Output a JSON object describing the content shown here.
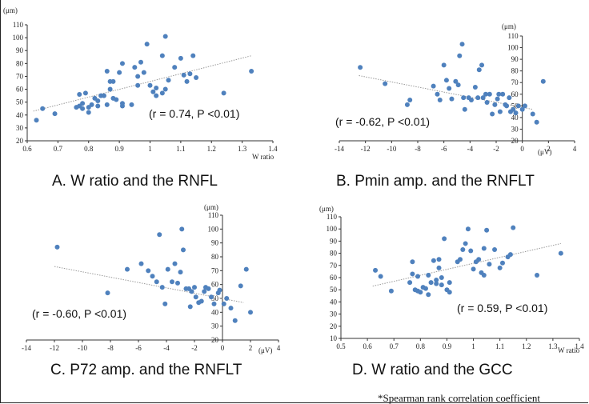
{
  "footnote": "*Spearman rank correlation coefficient",
  "chart_data": [
    {
      "type": "scatter",
      "caption": "A.  W ratio and the RNFL",
      "annotation": "(r = 0.74, P <0.01)",
      "xlabel": "W ratio",
      "ylabel": "(μm)",
      "xlim": [
        0.6,
        1.4
      ],
      "ylim": [
        20,
        110
      ],
      "xticks": [
        0.6,
        0.7,
        0.8,
        0.9,
        1.0,
        1.1,
        1.2,
        1.3,
        1.4
      ],
      "yticks": [
        20,
        30,
        40,
        50,
        60,
        70,
        80,
        90,
        100,
        110
      ],
      "trend": [
        [
          0.62,
          43
        ],
        [
          1.33,
          86
        ]
      ],
      "x": [
        0.63,
        0.65,
        0.69,
        0.76,
        0.77,
        0.77,
        0.78,
        0.78,
        0.79,
        0.8,
        0.8,
        0.81,
        0.82,
        0.83,
        0.83,
        0.84,
        0.85,
        0.86,
        0.86,
        0.87,
        0.87,
        0.88,
        0.88,
        0.89,
        0.9,
        0.91,
        0.91,
        0.91,
        0.94,
        0.95,
        0.96,
        0.96,
        0.97,
        0.98,
        0.99,
        1.0,
        1.01,
        1.02,
        1.02,
        1.04,
        1.04,
        1.05,
        1.05,
        1.06,
        1.08,
        1.1,
        1.11,
        1.12,
        1.13,
        1.14,
        1.15,
        1.24,
        1.33
      ],
      "y": [
        36,
        45,
        41,
        46,
        56,
        47,
        45,
        49,
        57,
        46,
        42,
        48,
        53,
        51,
        47,
        55,
        55,
        74,
        48,
        60,
        66,
        53,
        66,
        52,
        73,
        80,
        47,
        49,
        48,
        77,
        70,
        63,
        81,
        73,
        95,
        63,
        58,
        61,
        55,
        86,
        57,
        101,
        60,
        67,
        77,
        84,
        71,
        66,
        72,
        86,
        69,
        57,
        74
      ]
    },
    {
      "type": "scatter",
      "caption": "B.  Pmin amp. and the RNFLT",
      "annotation": "(r = -0.62, P <0.01)",
      "xlabel": "(μV)",
      "ylabel": "(μm)",
      "xlim": [
        -14,
        4
      ],
      "ylim": [
        20,
        110
      ],
      "xticks": [
        -14,
        -12,
        -10,
        -8,
        -6,
        -4,
        -2,
        0,
        2,
        4
      ],
      "yticks": [
        20,
        30,
        40,
        50,
        60,
        70,
        80,
        90,
        100,
        110
      ],
      "trend": [
        [
          -12.5,
          76
        ],
        [
          0.8,
          47
        ]
      ],
      "x": [
        -12.4,
        -10.5,
        -8.8,
        -8.6,
        -6.8,
        -6.5,
        -6.3,
        -6.0,
        -5.8,
        -5.6,
        -5.4,
        -5.1,
        -4.9,
        -4.8,
        -4.6,
        -4.5,
        -4.4,
        -4.1,
        -3.9,
        -3.6,
        -3.4,
        -3.3,
        -3.1,
        -3.0,
        -2.8,
        -2.7,
        -2.5,
        -2.3,
        -2.1,
        -1.9,
        -1.8,
        -1.7,
        -1.5,
        -1.3,
        -1.2,
        -1.0,
        -0.9,
        -0.7,
        -0.5,
        -0.3,
        0.0,
        0.2,
        0.8,
        1.1,
        1.6
      ],
      "y": [
        83,
        69,
        51,
        55,
        67,
        60,
        55,
        85,
        72,
        65,
        56,
        71,
        68,
        93,
        103,
        57,
        47,
        57,
        55,
        66,
        57,
        81,
        85,
        57,
        60,
        53,
        60,
        43,
        51,
        56,
        60,
        45,
        60,
        51,
        50,
        57,
        45,
        47,
        44,
        50,
        47,
        50,
        43,
        36,
        71
      ]
    },
    {
      "type": "scatter",
      "caption": "C.  P72 amp. and the RNFLT",
      "annotation": "(r = -0.60, P <0.01)",
      "xlabel": "(μV)",
      "ylabel": "(μm)",
      "xlim": [
        -14,
        4
      ],
      "ylim": [
        20,
        110
      ],
      "xticks": [
        -14,
        -12,
        -10,
        -8,
        -6,
        -4,
        -2,
        0,
        2,
        4
      ],
      "yticks": [
        20,
        30,
        40,
        50,
        60,
        70,
        80,
        90,
        100,
        110
      ],
      "trend": [
        [
          -12.0,
          73
        ],
        [
          1.5,
          47
        ]
      ],
      "x": [
        -11.8,
        -8.2,
        -6.8,
        -5.8,
        -5.3,
        -5.0,
        -4.7,
        -4.5,
        -4.3,
        -4.1,
        -3.9,
        -3.6,
        -3.4,
        -3.2,
        -3.0,
        -2.9,
        -2.8,
        -2.6,
        -2.4,
        -2.3,
        -2.2,
        -2.0,
        -1.9,
        -1.7,
        -1.5,
        -1.3,
        -1.2,
        -1.0,
        -0.8,
        -0.6,
        -0.3,
        -0.2,
        0.1,
        0.3,
        0.6,
        0.9,
        1.3,
        1.7,
        2.0
      ],
      "y": [
        87,
        54,
        71,
        75,
        70,
        66,
        62,
        96,
        58,
        46,
        71,
        62,
        75,
        61,
        69,
        100,
        85,
        57,
        57,
        44,
        55,
        58,
        51,
        47,
        48,
        55,
        58,
        57,
        51,
        46,
        54,
        56,
        46,
        50,
        43,
        34,
        59,
        71,
        40
      ]
    },
    {
      "type": "scatter",
      "caption": "D.  W ratio and the GCC",
      "annotation": "(r = 0.59, P <0.01)",
      "xlabel": "W ratio",
      "ylabel": "(μm)",
      "xlim": [
        0.5,
        1.4
      ],
      "ylim": [
        10,
        110
      ],
      "xticks": [
        0.5,
        0.6,
        0.7,
        0.8,
        0.9,
        1.0,
        1.1,
        1.2,
        1.3,
        1.4
      ],
      "yticks": [
        10,
        20,
        30,
        40,
        50,
        60,
        70,
        80,
        90,
        100,
        110
      ],
      "trend": [
        [
          0.62,
          53
        ],
        [
          1.33,
          88
        ]
      ],
      "x": [
        0.63,
        0.65,
        0.69,
        0.76,
        0.77,
        0.77,
        0.78,
        0.79,
        0.79,
        0.8,
        0.81,
        0.82,
        0.83,
        0.83,
        0.84,
        0.85,
        0.86,
        0.86,
        0.87,
        0.87,
        0.88,
        0.88,
        0.89,
        0.9,
        0.91,
        0.91,
        0.94,
        0.95,
        0.96,
        0.97,
        0.98,
        0.99,
        1.0,
        1.01,
        1.02,
        1.03,
        1.04,
        1.04,
        1.05,
        1.06,
        1.08,
        1.1,
        1.11,
        1.13,
        1.14,
        1.15,
        1.24,
        1.33
      ],
      "y": [
        66,
        61,
        49,
        56,
        73,
        63,
        50,
        61,
        49,
        48,
        52,
        51,
        46,
        62,
        56,
        74,
        58,
        55,
        68,
        75,
        54,
        60,
        92,
        50,
        48,
        56,
        73,
        75,
        83,
        88,
        100,
        82,
        67,
        73,
        75,
        64,
        62,
        84,
        99,
        71,
        83,
        68,
        72,
        77,
        79,
        101,
        62,
        80
      ]
    }
  ]
}
